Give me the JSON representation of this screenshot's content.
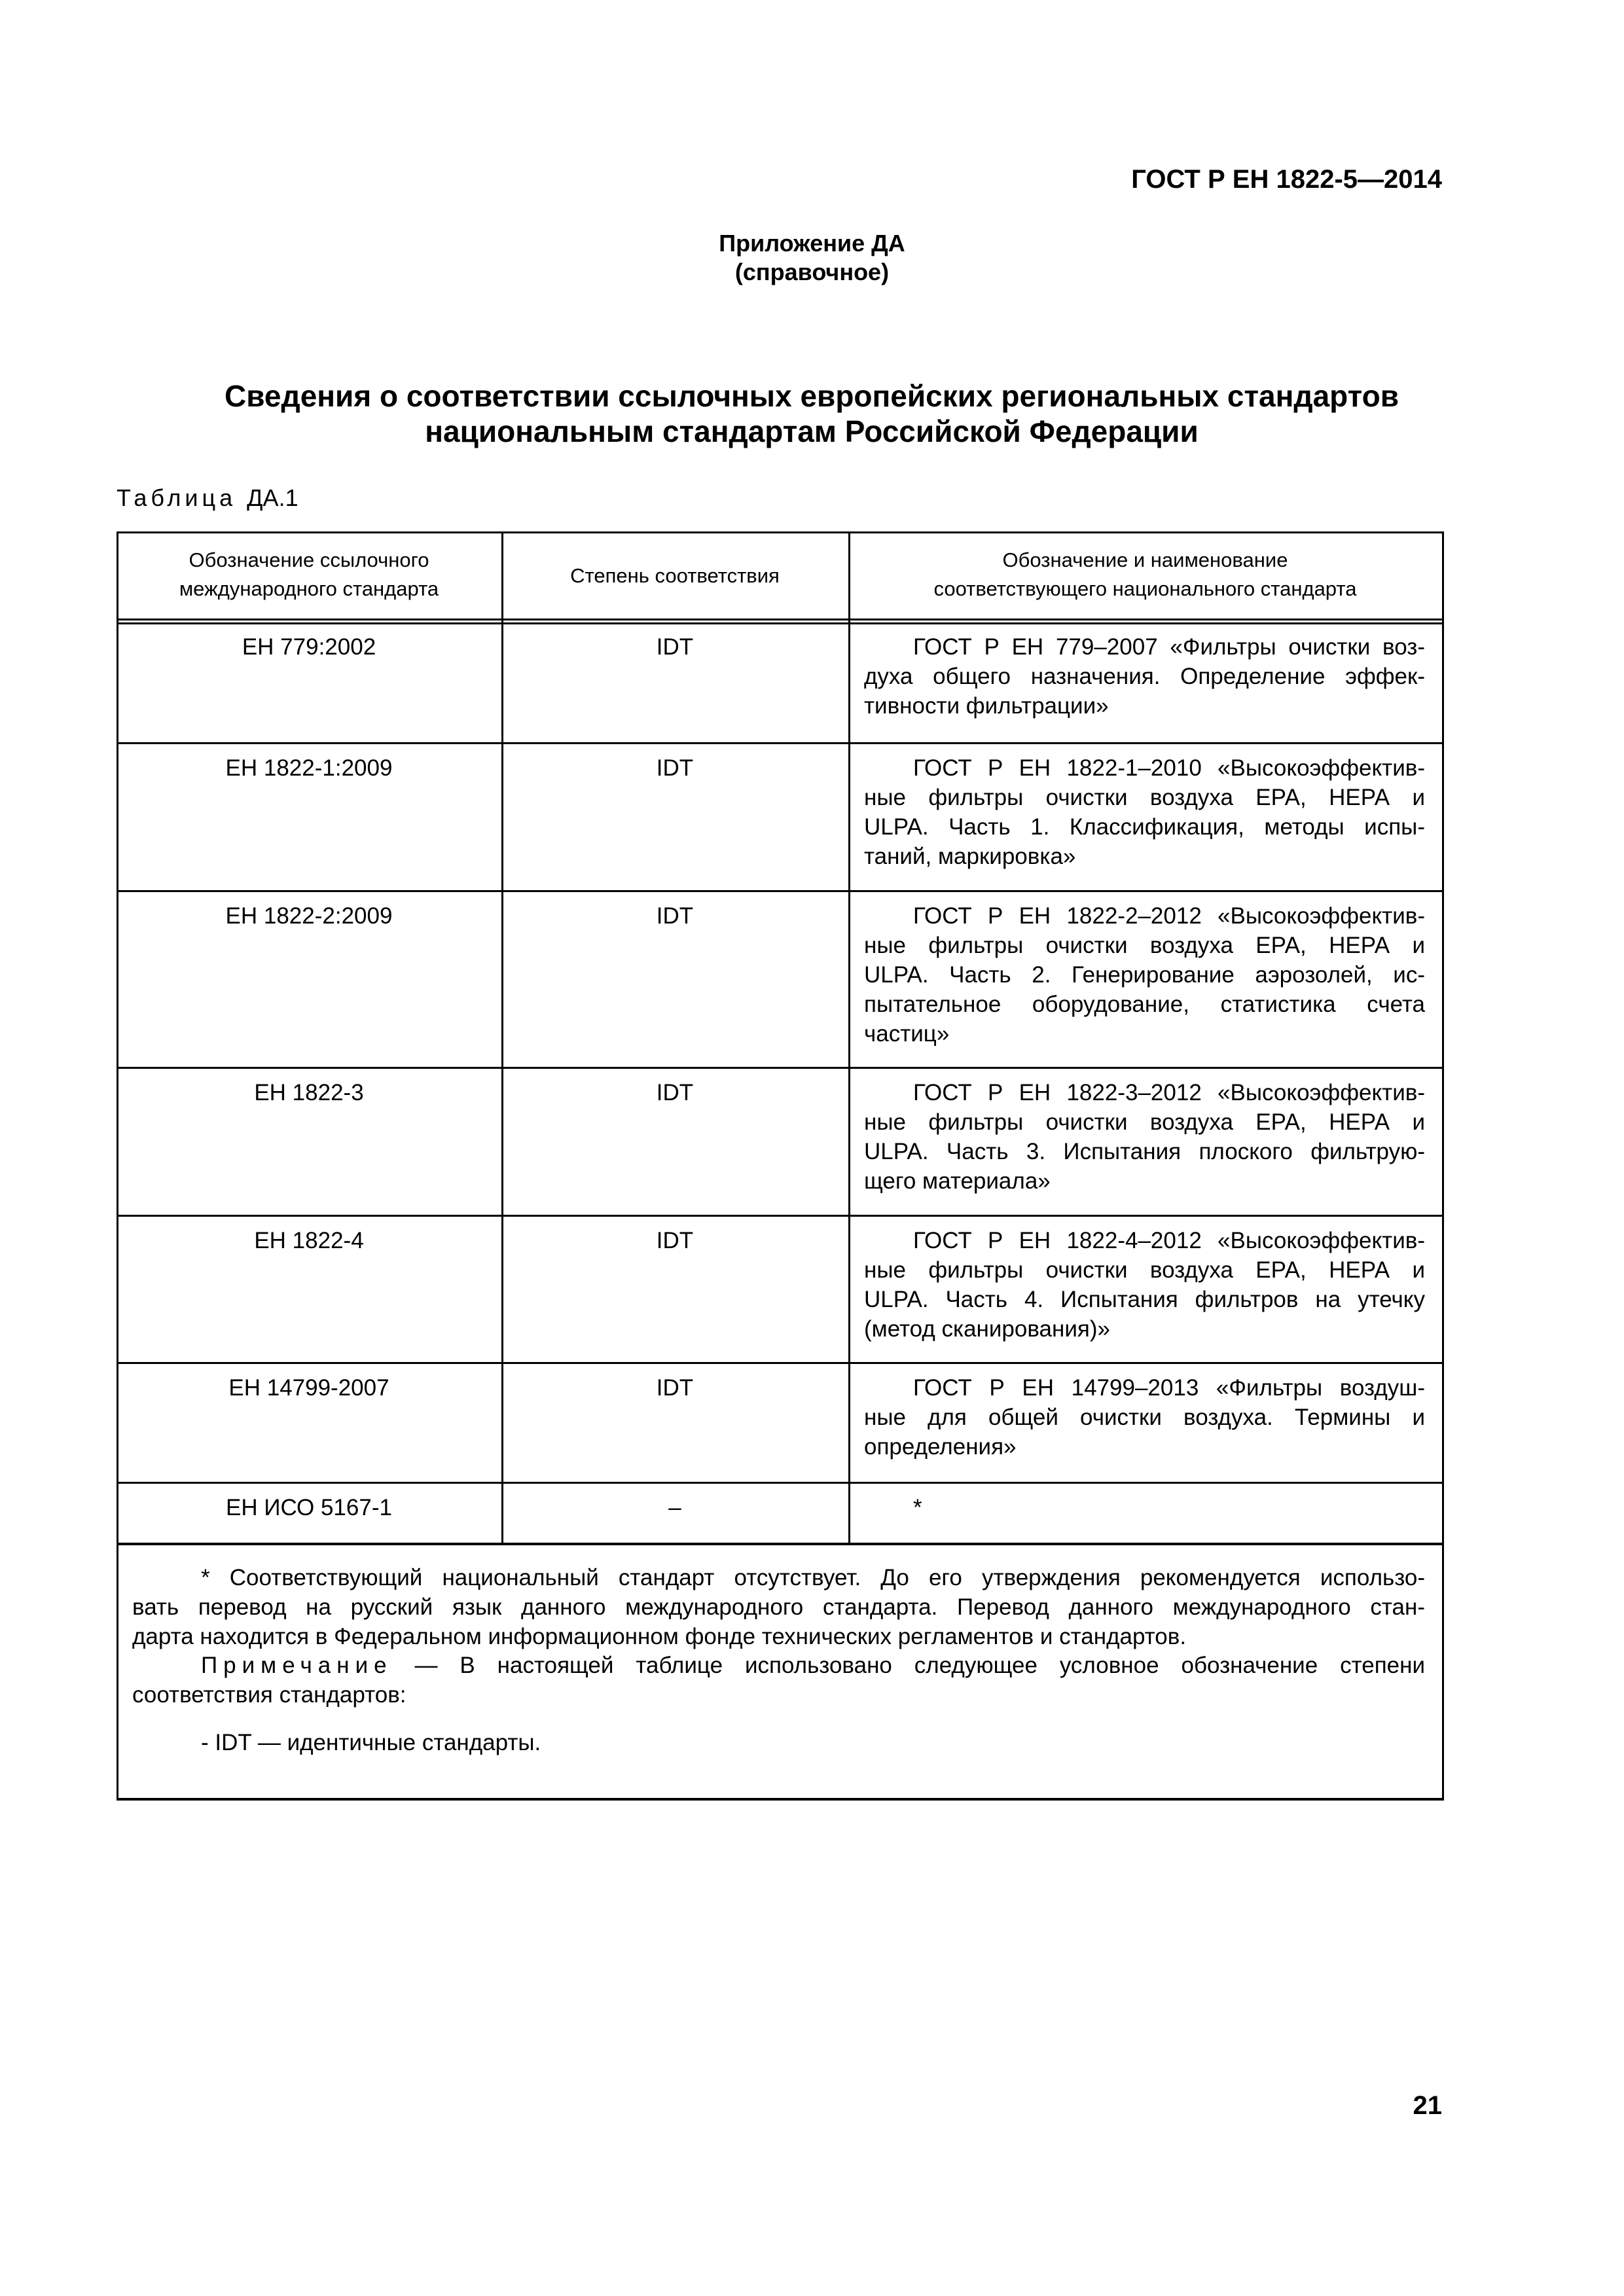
{
  "header": {
    "doc_code": "ГОСТ Р ЕН 1822-5—2014"
  },
  "annex": {
    "title": "Приложение ДА",
    "type": "(справочное)"
  },
  "title": {
    "line1": "Сведения о соответствии ссылочных европейских региональных стандартов",
    "line2": "национальным стандартам Российской Федерации"
  },
  "table_caption": {
    "label": "Таблица",
    "number": "ДА.1"
  },
  "table": {
    "headers": [
      [
        "Обозначение ссылочного",
        "международного стандарта"
      ],
      [
        "Степень соответствия"
      ],
      [
        "Обозначение и наименование",
        "соответствующего национального стандарта"
      ]
    ],
    "rows": [
      {
        "ref": "ЕН 779:2002",
        "degree": "IDT",
        "national": [
          "ГОСТ Р ЕН 779–2007 «Фильтры очистки воз-",
          "духа общего назначения. Определение эффек-",
          "тивности фильтрации»"
        ]
      },
      {
        "ref": "ЕН 1822-1:2009",
        "degree": "IDT",
        "national": [
          "ГОСТ Р ЕН 1822-1–2010 «Высокоэффектив-",
          "ные фильтры очистки воздуха ЕРА, НЕРА и",
          "ULPA. Часть 1. Классификация, методы испы-",
          "таний, маркировка»"
        ]
      },
      {
        "ref": "ЕН 1822-2:2009",
        "degree": "IDT",
        "national": [
          "ГОСТ Р ЕН 1822-2–2012 «Высокоэффектив-",
          "ные фильтры очистки воздуха ЕРА, НЕРА и",
          "ULPA. Часть 2. Генерирование аэрозолей, ис-",
          "пытательное оборудование, статистика счета",
          "частиц»"
        ]
      },
      {
        "ref": "ЕН 1822-3",
        "degree": "IDT",
        "national": [
          "ГОСТ Р ЕН 1822-3–2012 «Высокоэффектив-",
          "ные фильтры очистки воздуха ЕРА, НЕРА и",
          "ULPA. Часть 3. Испытания плоского фильтрую-",
          "щего материала»"
        ]
      },
      {
        "ref": "ЕН 1822-4",
        "degree": "IDT",
        "national": [
          "ГОСТ Р ЕН 1822-4–2012 «Высокоэффектив-",
          "ные фильтры очистки воздуха ЕРА, НЕРА и",
          "ULPA. Часть 4. Испытания фильтров на утечку",
          "(метод сканирования)»"
        ]
      },
      {
        "ref": "ЕН 14799-2007",
        "degree": "IDT",
        "national": [
          "ГОСТ Р ЕН 14799–2013 «Фильтры воздуш-",
          "ные для общей очистки воздуха. Термины и",
          "определения»"
        ]
      },
      {
        "ref": "ЕН ИСО 5167-1",
        "degree": "–",
        "national": [
          "*"
        ]
      }
    ],
    "footnote": [
      "* Соответствующий национальный стандарт отсутствует. До его утверждения рекомендуется использо-",
      "вать перевод на русский язык данного международного стандарта. Перевод данного международного стан-",
      "дарта находится в Федеральном информационном фонде технических регламентов и стандартов."
    ],
    "note_label": "Примечание",
    "note": [
      "— В настоящей таблице использовано следующее условное обозначение степени",
      "соответствия стандартов:"
    ],
    "legend": "- IDT — идентичные стандарты."
  },
  "page_number": "21"
}
